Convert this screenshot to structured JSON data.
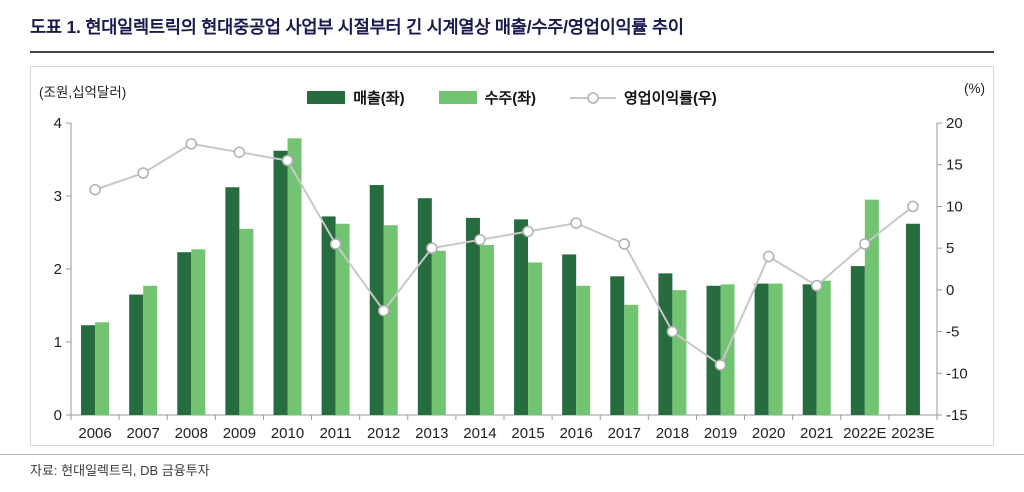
{
  "header": {
    "title": "도표 1. 현대일렉트릭의 현대중공업 사업부 시절부터 긴 시계열상 매출/수주/영업이익률 추이"
  },
  "footer": {
    "source": "자료: 현대일렉트릭, DB 금융투자"
  },
  "chart_data": {
    "type": "bar",
    "subtype": "grouped-bars-with-line",
    "left_axis_unit": "(조원,십억달러)",
    "right_axis_unit": "(%)",
    "left_axis": {
      "min": 0,
      "max": 4,
      "ticks": [
        0,
        1,
        2,
        3,
        4
      ]
    },
    "right_axis": {
      "min": -15,
      "max": 20,
      "ticks": [
        -15,
        -10,
        -5,
        0,
        5,
        10,
        15,
        20
      ]
    },
    "grid": "off",
    "legend_position": "top-center",
    "categories": [
      "2006",
      "2007",
      "2008",
      "2009",
      "2010",
      "2011",
      "2012",
      "2013",
      "2014",
      "2015",
      "2016",
      "2017",
      "2018",
      "2019",
      "2020",
      "2021",
      "2022E",
      "2023E"
    ],
    "series": [
      {
        "name": "매출(좌)",
        "type": "bar",
        "axis": "left",
        "color": "#266c3f",
        "values": [
          1.23,
          1.65,
          2.23,
          3.12,
          3.62,
          2.72,
          3.15,
          2.97,
          2.7,
          2.68,
          2.2,
          1.9,
          1.94,
          1.77,
          1.8,
          1.79,
          2.04,
          2.62
        ]
      },
      {
        "name": "수주(좌)",
        "type": "bar",
        "axis": "left",
        "color": "#72c472",
        "values": [
          1.27,
          1.77,
          2.27,
          2.55,
          3.79,
          2.62,
          2.6,
          2.25,
          2.33,
          2.09,
          1.77,
          1.51,
          1.71,
          1.79,
          1.8,
          1.84,
          2.95,
          null
        ]
      },
      {
        "name": "영업이익률(우)",
        "type": "line",
        "axis": "right",
        "color": "#c8c8c8",
        "marker_fill": "#ffffff",
        "marker_stroke": "#b0b0b0",
        "values": [
          12,
          14,
          17.5,
          16.5,
          15.5,
          5.5,
          -2.5,
          5,
          6,
          7,
          8,
          5.5,
          -5,
          -9,
          4,
          0.5,
          5.5,
          10
        ]
      }
    ],
    "axis_color": "#9a9a9a",
    "tick_label_color": "#222222"
  }
}
